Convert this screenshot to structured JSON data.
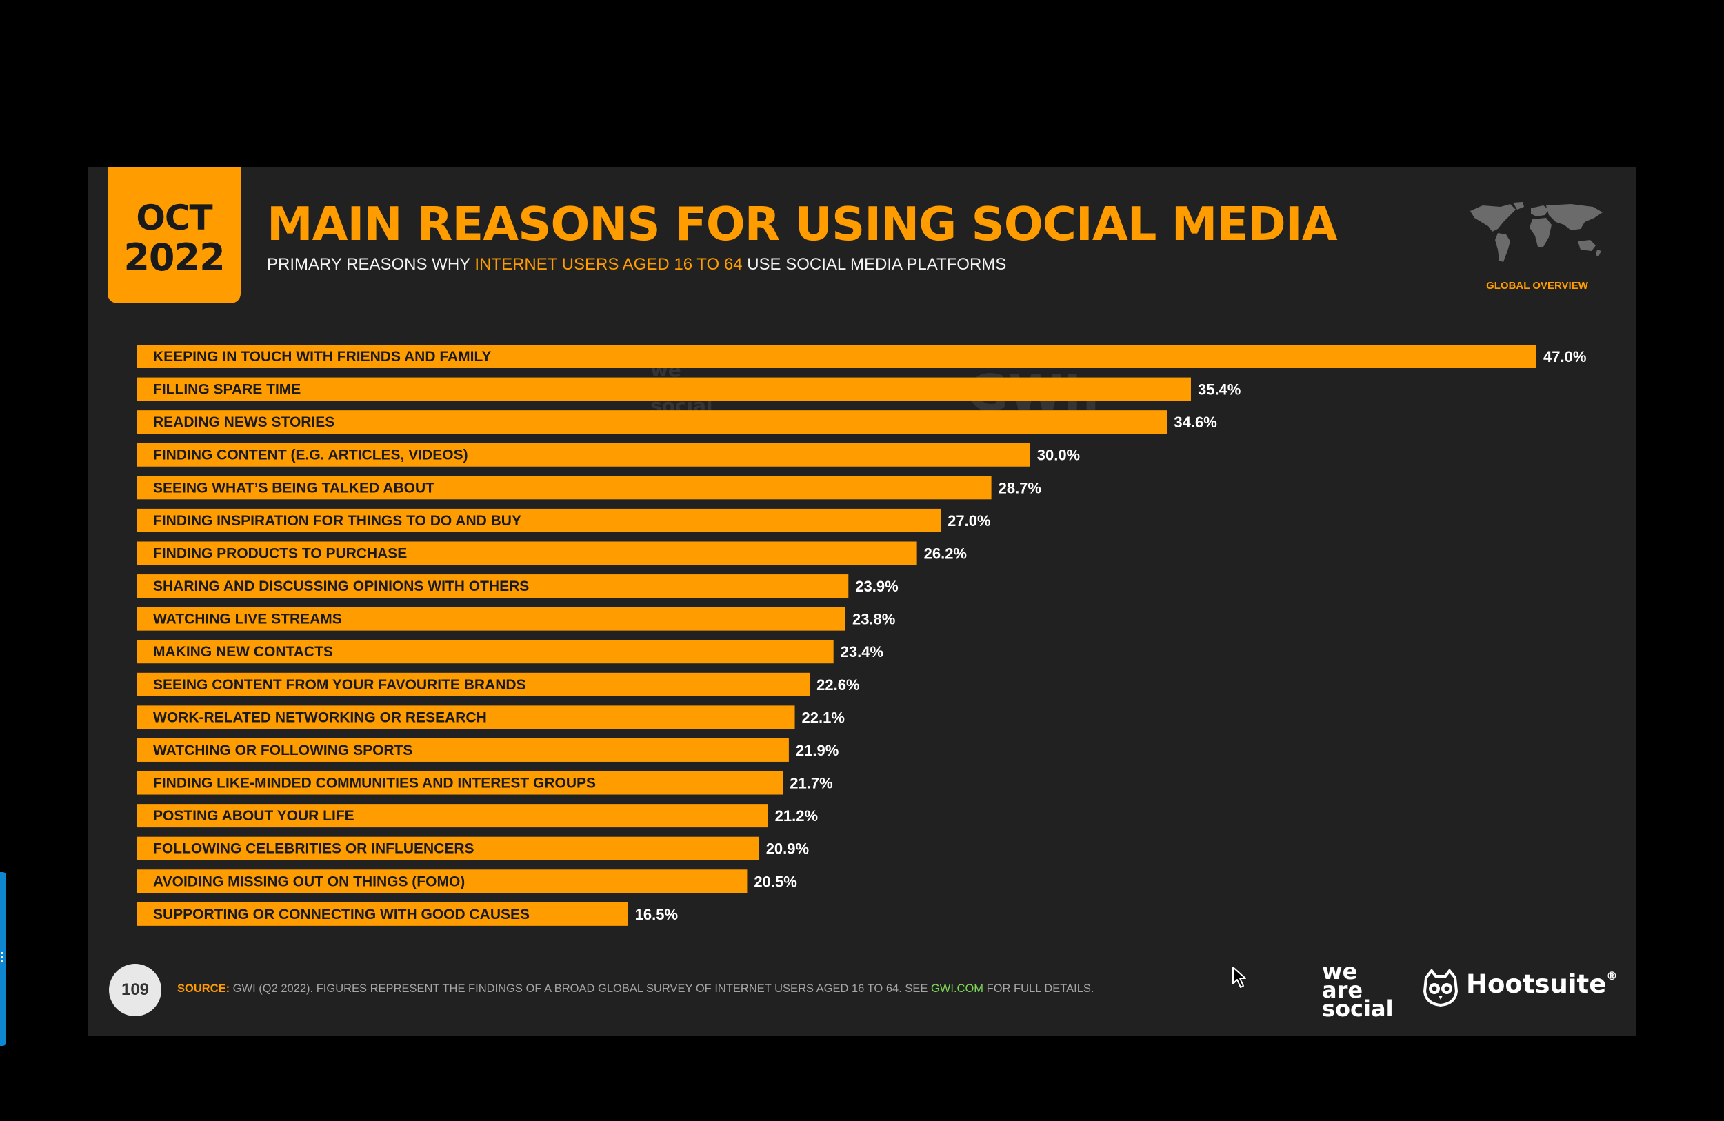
{
  "slide": {
    "date_month": "OCT",
    "date_year": "2022",
    "title": "MAIN REASONS FOR USING SOCIAL MEDIA",
    "subtitle": {
      "before": "PRIMARY REASONS WHY ",
      "highlight": "INTERNET USERS AGED 16 TO 64",
      "after": " USE SOCIAL MEDIA PLATFORMS"
    },
    "region_label": "GLOBAL OVERVIEW",
    "page_number": "109",
    "source": {
      "label": "SOURCE:",
      "text": " GWI (Q2 2022). FIGURES REPRESENT THE FINDINGS OF A BROAD GLOBAL SURVEY OF INTERNET USERS AGED 16 TO 64. SEE ",
      "link": "GWI.COM",
      "after": " FOR FULL DETAILS."
    },
    "watermark": {
      "was": [
        "we",
        "are",
        "social"
      ],
      "hootsuite": "Hootsuite",
      "gwi": "GWI."
    },
    "brands": {
      "was": [
        "we",
        "are",
        "social"
      ],
      "hootsuite": "Hootsuite",
      "hootsuite_mark": "®"
    },
    "icons": {
      "map": "world-map-icon",
      "owl": "hootsuite-owl-icon",
      "cursor": "mouse-cursor-icon"
    }
  },
  "colors": {
    "background": "#000000",
    "slide": "#212121",
    "accent": "#ff9c00",
    "bar_label": "#1a1a1a",
    "value_label": "#ffffff",
    "link": "#7ed957"
  },
  "chart_data": {
    "type": "bar",
    "orientation": "horizontal",
    "title": "MAIN REASONS FOR USING SOCIAL MEDIA",
    "xlim": [
      0,
      47
    ],
    "grid": false,
    "legend": "none",
    "categories": [
      "KEEPING IN TOUCH WITH FRIENDS AND FAMILY",
      "FILLING SPARE TIME",
      "READING NEWS STORIES",
      "FINDING CONTENT (E.G. ARTICLES, VIDEOS)",
      "SEEING WHAT’S BEING TALKED ABOUT",
      "FINDING INSPIRATION FOR THINGS TO DO AND BUY",
      "FINDING PRODUCTS TO PURCHASE",
      "SHARING AND DISCUSSING OPINIONS WITH OTHERS",
      "WATCHING LIVE STREAMS",
      "MAKING NEW CONTACTS",
      "SEEING CONTENT FROM YOUR FAVOURITE BRANDS",
      "WORK-RELATED NETWORKING OR RESEARCH",
      "WATCHING OR FOLLOWING SPORTS",
      "FINDING LIKE-MINDED COMMUNITIES AND INTEREST GROUPS",
      "POSTING ABOUT YOUR LIFE",
      "FOLLOWING CELEBRITIES OR INFLUENCERS",
      "AVOIDING MISSING OUT ON THINGS (FOMO)",
      "SUPPORTING OR CONNECTING WITH GOOD CAUSES"
    ],
    "values": [
      47.0,
      35.4,
      34.6,
      30.0,
      28.7,
      27.0,
      26.2,
      23.9,
      23.8,
      23.4,
      22.6,
      22.1,
      21.9,
      21.7,
      21.2,
      20.9,
      20.5,
      16.5
    ],
    "value_labels": [
      "47.0%",
      "35.4%",
      "34.6%",
      "30.0%",
      "28.7%",
      "27.0%",
      "26.2%",
      "23.9%",
      "23.8%",
      "23.4%",
      "22.6%",
      "22.1%",
      "21.9%",
      "21.7%",
      "21.2%",
      "20.9%",
      "20.5%",
      "16.5%"
    ]
  }
}
